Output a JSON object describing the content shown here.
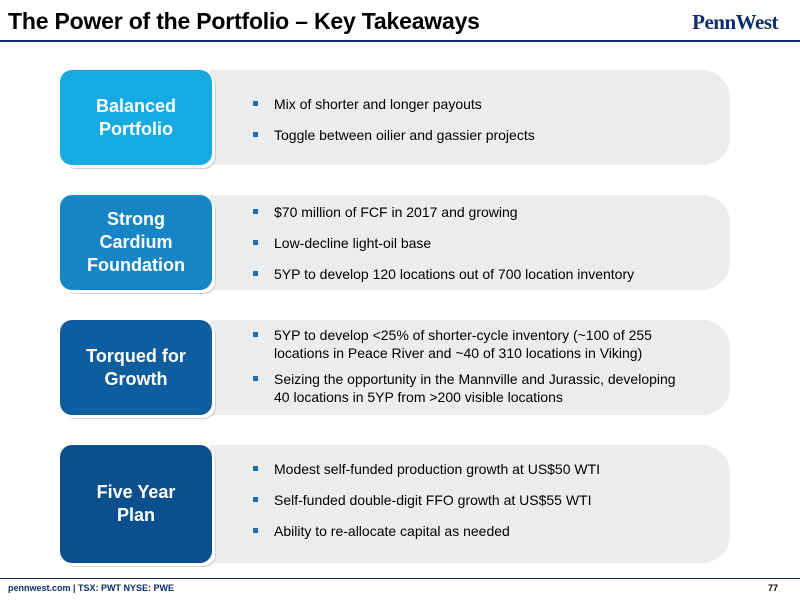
{
  "slide": {
    "title": "The Power of the Portfolio – Key Takeaways",
    "logo_text": "PennWest",
    "page_number": "77"
  },
  "footer": {
    "left_text": "pennwest.com | TSX: PWT NYSE: PWE"
  },
  "colors": {
    "tab_1": "#17a9e1",
    "tab_2": "#1585c6",
    "tab_3": "#0e5d9e",
    "tab_4": "#0b4f8f",
    "panel": "#ececec",
    "brand_navy": "#0b2f6a"
  },
  "sections": [
    {
      "label": "Balanced\nPortfolio",
      "bullets": [
        "Mix of shorter and longer payouts",
        "Toggle between oilier and gassier projects"
      ]
    },
    {
      "label": "Strong\nCardium\nFoundation",
      "bullets": [
        "$70 million of FCF in 2017 and growing",
        "Low-decline light-oil base",
        "5YP to develop 120 locations out of 700 location inventory"
      ]
    },
    {
      "label": "Torqued for\nGrowth",
      "bullets": [
        "5YP to develop <25% of shorter-cycle inventory (~100 of 255 locations in Peace River and ~40 of 310 locations in Viking)",
        "Seizing the opportunity in the Mannville and Jurassic, developing 40 locations in 5YP from >200 visible locations"
      ]
    },
    {
      "label": "Five Year\nPlan",
      "bullets": [
        "Modest self-funded production growth at US$50 WTI",
        "Self-funded double-digit FFO growth at US$55 WTI",
        "Ability to re-allocate capital as needed"
      ]
    }
  ]
}
